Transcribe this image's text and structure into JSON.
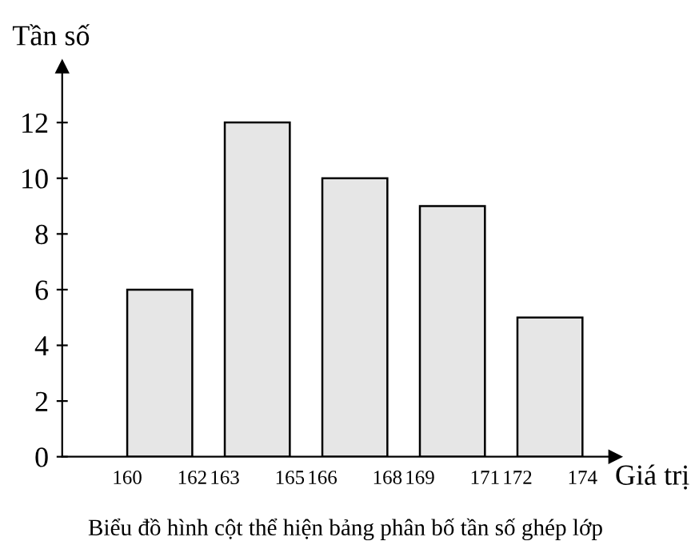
{
  "chart_data": {
    "type": "bar",
    "ylabel": "Tần số",
    "xlabel": "Giá trị",
    "x": [
      161,
      164,
      167,
      170,
      173
    ],
    "values": [
      6,
      12,
      10,
      9,
      5
    ],
    "color": "#e6e6e6",
    "xlim": [
      158,
      175
    ],
    "xticks": [
      160,
      162,
      163,
      165,
      166,
      168,
      169,
      171,
      172,
      174
    ],
    "ylim": [
      0,
      14
    ],
    "yticks": [
      0,
      2,
      4,
      6,
      8,
      10,
      12
    ],
    "grid": false,
    "legend": false,
    "annotations": [
      "Biểu đồ hình cột thể hiện bảng phân bố tần số ghép lớp"
    ]
  }
}
